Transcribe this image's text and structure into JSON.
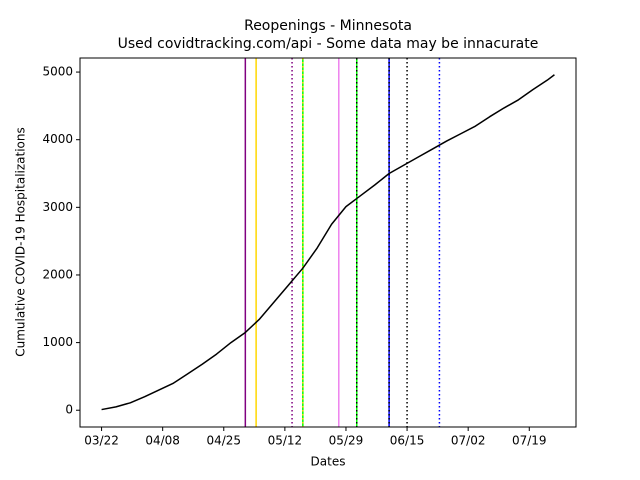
{
  "chart_data": {
    "type": "line",
    "title": "Reopenings - Minnesota",
    "subtitle": "Used covidtracking.com/api - Some data may be innacurate",
    "x_label": "Dates",
    "y_label": "Cumulative COVID-19 Hospitalizations",
    "x": [
      "03/22",
      "03/26",
      "03/30",
      "04/03",
      "04/07",
      "04/11",
      "04/15",
      "04/19",
      "04/23",
      "04/27",
      "05/01",
      "05/05",
      "05/09",
      "05/13",
      "05/17",
      "05/21",
      "05/25",
      "05/29",
      "06/02",
      "06/06",
      "06/10",
      "06/14",
      "06/18",
      "06/22",
      "06/26",
      "06/30",
      "07/04",
      "07/08",
      "07/12",
      "07/16",
      "07/20",
      "07/24",
      "07/26"
    ],
    "series": [
      {
        "color": "#000000",
        "values": [
          10,
          50,
          110,
          200,
          300,
          400,
          540,
          680,
          830,
          1000,
          1150,
          1350,
          1600,
          1850,
          2100,
          2400,
          2750,
          3010,
          3170,
          3330,
          3500,
          3620,
          3740,
          3860,
          3980,
          4090,
          4200,
          4340,
          4470,
          4590,
          4740,
          4880,
          4960
        ]
      }
    ],
    "xlim": [
      "03/16",
      "08/01"
    ],
    "xticks": [
      "03/22",
      "04/08",
      "04/25",
      "05/12",
      "05/29",
      "06/15",
      "07/02",
      "07/19"
    ],
    "ylim": [
      -248,
      5208
    ],
    "yticks": [
      0,
      1000,
      2000,
      3000,
      4000,
      5000
    ],
    "vlines": [
      {
        "x": "05/01",
        "color": "#800080",
        "style": "solid"
      },
      {
        "x": "05/04",
        "color": "#ffd700",
        "style": "solid"
      },
      {
        "x": "05/14",
        "color": "#800080",
        "style": "dotted"
      },
      {
        "x": "05/17",
        "color": "#00ff00",
        "style": "solid"
      },
      {
        "x": "05/17",
        "color": "#ffd700",
        "style": "dotted"
      },
      {
        "x": "05/27",
        "color": "#ee82ee",
        "style": "solid"
      },
      {
        "x": "06/01",
        "color": "#00ff00",
        "style": "solid"
      },
      {
        "x": "06/01",
        "color": "#000000",
        "style": "dotted"
      },
      {
        "x": "06/10",
        "color": "#0000ff",
        "style": "solid"
      },
      {
        "x": "06/10",
        "color": "#000000",
        "style": "dotted"
      },
      {
        "x": "06/15",
        "color": "#000000",
        "style": "dotted"
      },
      {
        "x": "06/24",
        "color": "#0000ff",
        "style": "dotted"
      }
    ]
  }
}
